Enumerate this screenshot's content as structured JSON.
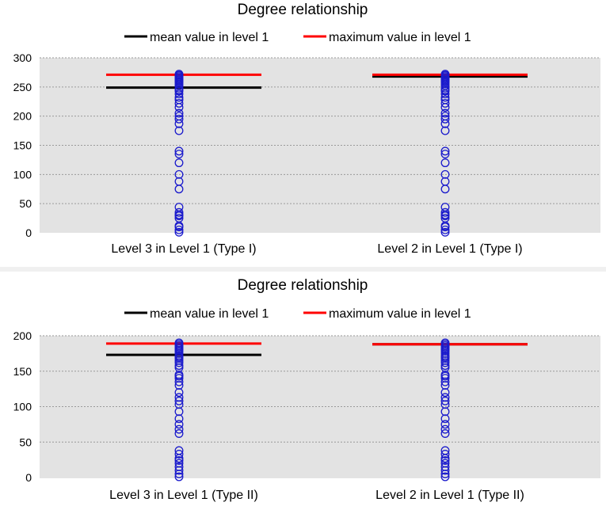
{
  "chart_data": [
    {
      "type": "scatter",
      "title": "Degree relationship",
      "legend": [
        {
          "name": "mean value in level 1",
          "color": "#000000"
        },
        {
          "name": "maximum value in level 1",
          "color": "#ff0000"
        }
      ],
      "legend_position": "top-center",
      "ylim": [
        0,
        300
      ],
      "yticks": [
        0,
        50,
        100,
        150,
        200,
        250,
        300
      ],
      "grid": true,
      "categories": [
        "Level 3 in Level 1 (Type I)",
        "Level 2 in Level 1 (Type I)"
      ],
      "groups": [
        {
          "category": "Level 3 in Level 1 (Type I)",
          "mean": 249,
          "max": 271,
          "points": [
            1,
            5,
            10,
            12,
            25,
            29,
            31,
            35,
            44,
            75,
            88,
            100,
            120,
            135,
            140,
            175,
            187,
            195,
            200,
            205,
            215,
            222,
            228,
            232,
            238,
            243,
            245,
            248,
            252,
            255,
            258,
            260,
            262,
            264,
            266,
            268,
            270,
            272
          ]
        },
        {
          "category": "Level 2 in Level 1 (Type I)",
          "mean": 268,
          "max": 271,
          "points": [
            1,
            5,
            10,
            12,
            25,
            29,
            31,
            35,
            44,
            75,
            88,
            100,
            120,
            135,
            140,
            175,
            187,
            195,
            200,
            205,
            215,
            222,
            228,
            232,
            238,
            243,
            245,
            248,
            252,
            255,
            258,
            260,
            262,
            264,
            266,
            268,
            270,
            272
          ]
        }
      ]
    },
    {
      "type": "scatter",
      "title": "Degree relationship",
      "legend": [
        {
          "name": "mean value in level 1",
          "color": "#000000"
        },
        {
          "name": "maximum value in level 1",
          "color": "#ff0000"
        }
      ],
      "legend_position": "top-center",
      "ylim": [
        0,
        200
      ],
      "yticks": [
        0,
        50,
        100,
        150,
        200
      ],
      "grid": true,
      "categories": [
        "Level 3 in Level 1 (Type II)",
        "Level 2 in Level 1 (Type II)"
      ],
      "groups": [
        {
          "category": "Level 3 in Level 1 (Type II)",
          "mean": 173,
          "max": 189,
          "points": [
            1,
            5,
            10,
            15,
            20,
            24,
            27,
            33,
            38,
            62,
            68,
            75,
            83,
            93,
            103,
            108,
            113,
            120,
            130,
            135,
            140,
            143,
            145,
            155,
            158,
            162,
            165,
            168,
            170,
            172,
            175,
            178,
            180,
            182,
            184,
            186,
            188,
            190
          ]
        },
        {
          "category": "Level 2 in Level 1 (Type II)",
          "mean": 188,
          "max": 188,
          "points": [
            1,
            5,
            10,
            15,
            20,
            24,
            27,
            33,
            38,
            62,
            68,
            75,
            83,
            93,
            103,
            108,
            113,
            120,
            130,
            135,
            140,
            143,
            145,
            155,
            158,
            162,
            165,
            168,
            170,
            172,
            175,
            178,
            180,
            182,
            184,
            186,
            188,
            190
          ]
        }
      ]
    }
  ]
}
